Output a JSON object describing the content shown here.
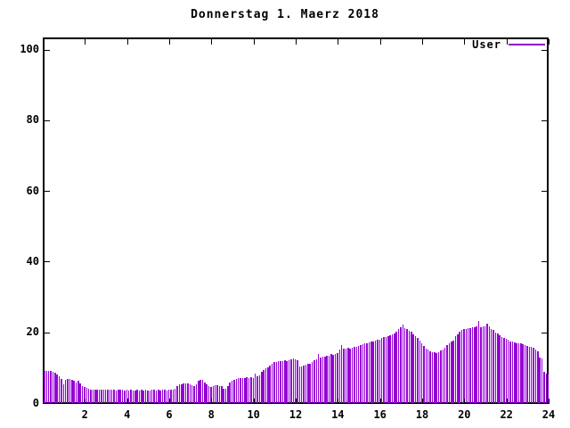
{
  "colors": {
    "bar": "#9400d3",
    "axis": "#000000",
    "text": "#000000",
    "background": "#ffffff"
  },
  "legend": {
    "label": "User",
    "color": "#9400d3",
    "position": "top-right-inside"
  },
  "chart_data": {
    "type": "bar",
    "title": "Donnerstag 1. Maerz 2018",
    "xlabel": "",
    "ylabel": "",
    "x_unit": "hour-of-day",
    "x_start": 0,
    "x_step": 0.1,
    "xlim": [
      0,
      24
    ],
    "ylim": [
      0,
      103.5
    ],
    "x_ticks": [
      2,
      4,
      6,
      8,
      10,
      12,
      14,
      16,
      18,
      20,
      22,
      24
    ],
    "y_ticks": [
      0,
      20,
      40,
      60,
      80,
      100
    ],
    "grid": false,
    "legend_entries": [
      "User"
    ],
    "series_name": "User",
    "values": [
      9.2,
      9.1,
      9.2,
      9.0,
      8.9,
      8.6,
      8.2,
      7.6,
      6.9,
      5.4,
      6.5,
      6.8,
      6.9,
      6.6,
      6.2,
      5.8,
      6.3,
      5.6,
      4.9,
      4.6,
      4.3,
      4.1,
      3.9,
      3.8,
      3.8,
      3.7,
      3.8,
      3.7,
      3.7,
      3.8,
      3.7,
      3.7,
      3.8,
      3.7,
      3.6,
      3.8,
      3.8,
      3.7,
      3.6,
      3.7,
      3.6,
      3.7,
      3.6,
      3.6,
      3.7,
      3.6,
      3.7,
      3.6,
      3.7,
      3.6,
      3.6,
      3.7,
      3.7,
      3.6,
      3.7,
      3.6,
      3.7,
      3.7,
      3.6,
      3.7,
      3.7,
      3.8,
      4.0,
      4.8,
      5.3,
      5.4,
      5.6,
      5.5,
      5.6,
      5.4,
      5.1,
      4.9,
      5.3,
      6.4,
      6.5,
      6.6,
      5.8,
      5.2,
      4.8,
      4.6,
      4.8,
      5.0,
      5.1,
      4.9,
      4.7,
      4.1,
      4.0,
      4.9,
      5.7,
      6.2,
      6.5,
      6.7,
      7.0,
      7.1,
      7.2,
      7.1,
      7.3,
      7.2,
      7.3,
      7.2,
      8.4,
      7.5,
      7.9,
      8.9,
      9.4,
      9.9,
      10.0,
      10.6,
      11.2,
      11.5,
      11.7,
      11.8,
      11.9,
      11.8,
      12.0,
      11.9,
      12.1,
      12.4,
      12.5,
      12.4,
      12.2,
      10.4,
      10.3,
      10.6,
      10.8,
      11.0,
      11.2,
      11.5,
      12.1,
      12.3,
      13.9,
      12.9,
      13.1,
      13.1,
      13.3,
      13.5,
      13.8,
      13.7,
      14.0,
      14.2,
      15.2,
      16.4,
      15.5,
      15.4,
      15.6,
      15.5,
      15.7,
      15.9,
      15.8,
      16.2,
      16.5,
      16.7,
      16.9,
      17.0,
      17.2,
      17.3,
      17.5,
      17.7,
      17.8,
      17.9,
      18.3,
      18.6,
      18.7,
      19.0,
      19.3,
      19.4,
      19.7,
      20.2,
      20.9,
      21.4,
      22.1,
      21.3,
      21.0,
      20.5,
      20.2,
      19.5,
      18.9,
      18.3,
      17.6,
      17.0,
      16.2,
      15.4,
      15.2,
      14.7,
      14.5,
      14.4,
      14.2,
      14.3,
      14.8,
      15.2,
      15.6,
      16.4,
      16.9,
      17.4,
      17.6,
      18.9,
      19.5,
      20.3,
      20.7,
      20.9,
      21.0,
      21.2,
      21.3,
      21.5,
      21.4,
      21.6,
      23.1,
      21.5,
      21.6,
      21.8,
      22.5,
      21.7,
      21.0,
      20.6,
      20.0,
      19.6,
      19.3,
      18.8,
      18.3,
      18.1,
      17.8,
      17.5,
      17.3,
      17.1,
      17.0,
      16.9,
      16.8,
      16.7,
      16.4,
      16.2,
      16.0,
      15.8,
      15.6,
      15.1,
      14.6,
      13.0,
      12.6,
      8.8,
      8.4,
      8.2
    ]
  }
}
